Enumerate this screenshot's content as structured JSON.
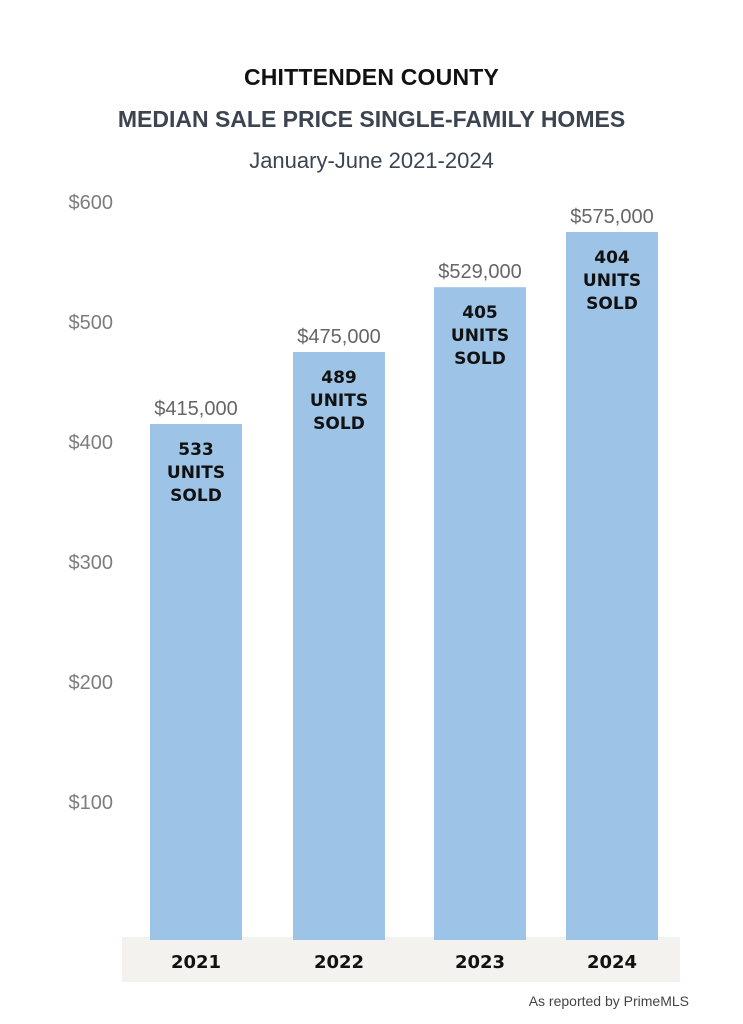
{
  "header": {
    "title": "CHITTENDEN COUNTY",
    "subtitle": "MEDIAN SALE PRICE SINGLE-FAMILY HOMES",
    "period": "January-June 2021-2024"
  },
  "footer": {
    "source": "As reported by PrimeMLS"
  },
  "colors": {
    "bar": "#9dc3e6",
    "axis_band": "#f4f2ee"
  },
  "chart_data": {
    "type": "bar",
    "title": "MEDIAN SALE PRICE SINGLE-FAMILY HOMES",
    "categories": [
      "2021",
      "2022",
      "2023",
      "2024"
    ],
    "values": [
      415,
      475,
      529,
      575
    ],
    "value_labels": [
      "$415,000",
      "$475,000",
      "$529,000",
      "$575,000"
    ],
    "units_sold": [
      533,
      489,
      405,
      404
    ],
    "units_label": [
      "UNITS",
      "SOLD"
    ],
    "yticks": [
      100,
      200,
      300,
      400,
      500,
      600
    ],
    "ytick_labels": [
      "$100",
      "$200",
      "$300",
      "$400",
      "$500",
      "$600"
    ],
    "ylim": [
      0,
      600
    ],
    "grid": false,
    "legend": "none"
  }
}
